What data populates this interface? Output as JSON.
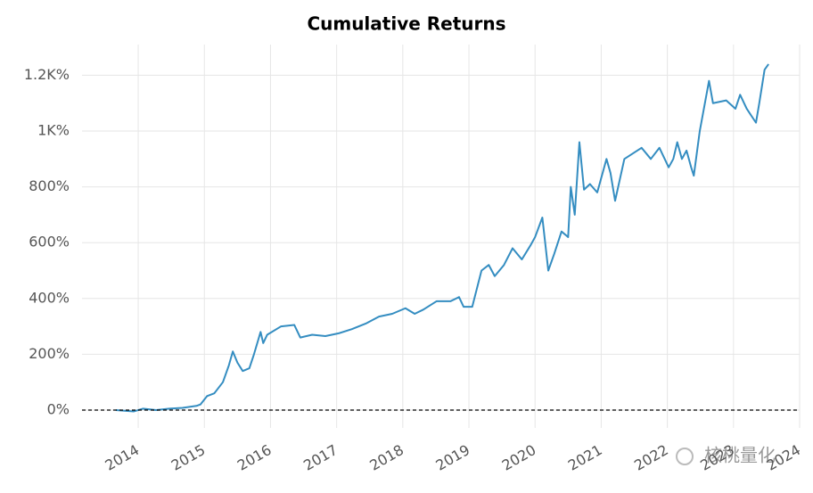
{
  "chart_data": {
    "type": "line",
    "title": "Cumulative Returns",
    "x": [
      2013.66,
      2013.93,
      2014.07,
      2014.27,
      2014.47,
      2014.67,
      2014.88,
      2014.94,
      2015.04,
      2015.15,
      2015.28,
      2015.37,
      2015.43,
      2015.5,
      2015.58,
      2015.68,
      2015.75,
      2015.85,
      2015.89,
      2015.95,
      2016.16,
      2016.36,
      2016.45,
      2016.63,
      2016.83,
      2017.03,
      2017.23,
      2017.44,
      2017.64,
      2017.84,
      2018.04,
      2018.18,
      2018.31,
      2018.51,
      2018.72,
      2018.85,
      2018.92,
      2019.05,
      2019.19,
      2019.3,
      2019.39,
      2019.53,
      2019.66,
      2019.8,
      2019.93,
      2020.0,
      2020.11,
      2020.2,
      2020.29,
      2020.4,
      2020.5,
      2020.54,
      2020.6,
      2020.67,
      2020.74,
      2020.83,
      2020.94,
      2021.08,
      2021.14,
      2021.21,
      2021.35,
      2021.48,
      2021.61,
      2021.75,
      2021.88,
      2022.02,
      2022.09,
      2022.15,
      2022.22,
      2022.29,
      2022.36,
      2022.4,
      2022.49,
      2022.63,
      2022.69,
      2022.89,
      2023.03,
      2023.1,
      2023.2,
      2023.34,
      2023.39,
      2023.47,
      2023.53
    ],
    "series": [
      {
        "name": "Cumulative Returns",
        "color": "#348dc1",
        "values": [
          0,
          -5,
          5,
          0,
          5,
          8,
          15,
          20,
          50,
          60,
          100,
          160,
          210,
          170,
          140,
          150,
          200,
          280,
          240,
          270,
          300,
          305,
          260,
          270,
          265,
          275,
          290,
          310,
          335,
          345,
          365,
          345,
          360,
          390,
          390,
          405,
          370,
          370,
          500,
          520,
          480,
          520,
          580,
          540,
          590,
          620,
          690,
          500,
          560,
          640,
          620,
          800,
          700,
          960,
          790,
          810,
          780,
          900,
          850,
          750,
          900,
          920,
          940,
          900,
          940,
          870,
          900,
          960,
          900,
          930,
          870,
          840,
          1000,
          1180,
          1100,
          1110,
          1080,
          1130,
          1080,
          1030,
          1100,
          1220,
          1240
        ]
      }
    ],
    "xlim": [
      2013.15,
      2024.0
    ],
    "xticks": [
      2014,
      2015,
      2016,
      2017,
      2018,
      2019,
      2020,
      2021,
      2022,
      2023,
      2024
    ],
    "ylim": [
      -64,
      1310
    ],
    "yticks": [
      {
        "value": 0,
        "label": "0%"
      },
      {
        "value": 200,
        "label": "200%"
      },
      {
        "value": 400,
        "label": "400%"
      },
      {
        "value": 600,
        "label": "600%"
      },
      {
        "value": 800,
        "label": "800%"
      },
      {
        "value": 1000,
        "label": "1K%"
      },
      {
        "value": 1200,
        "label": "1.2K%"
      }
    ],
    "grid": true,
    "watermark": "核桃量化"
  }
}
